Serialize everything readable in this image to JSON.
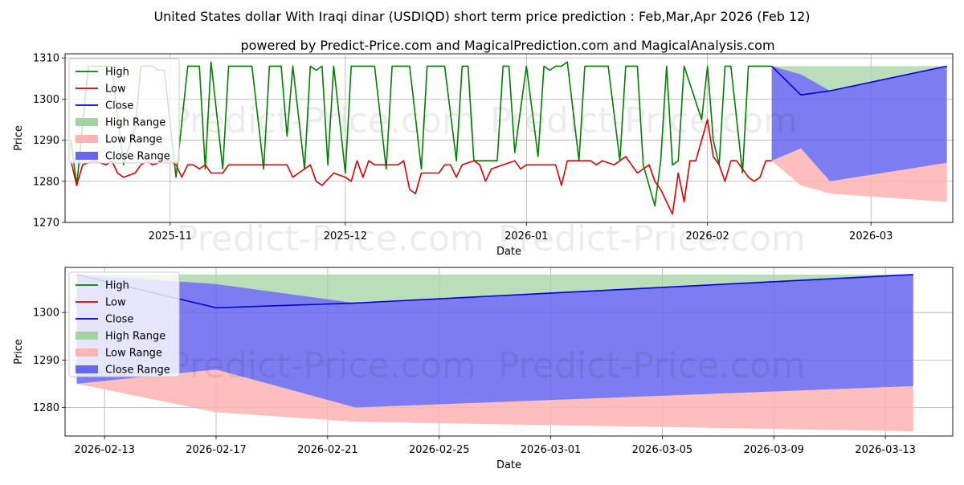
{
  "title": "United States dollar With Iraqi dinar (USDIQD) short term price prediction : Feb,Mar,Apr 2026 (Feb 12)",
  "subtitle": "powered by Predict-Price.com and MagicalPrediction.com and MagicalAnalysis.com",
  "watermark": "Predict-Price.com",
  "colors": {
    "high": "#008000",
    "low": "#dd0000",
    "close": "#0000dd",
    "high_range": "#a3d3a3",
    "low_range": "#ffb3b3",
    "close_range": "#6666ee"
  },
  "chart_data": [
    {
      "type": "line",
      "name": "history",
      "xlabel": "Date",
      "ylabel": "Price",
      "xlim": [
        "2025-10-14",
        "2026-03-15"
      ],
      "ylim": [
        1270,
        1311
      ],
      "yticks": [
        1270,
        1280,
        1290,
        1300,
        1310
      ],
      "xticks": [
        {
          "date": "2025-11-01",
          "label": "2025-11"
        },
        {
          "date": "2025-12-01",
          "label": "2025-12"
        },
        {
          "date": "2026-01-01",
          "label": "2026-01"
        },
        {
          "date": "2026-02-01",
          "label": "2026-02"
        },
        {
          "date": "2026-03-01",
          "label": "2026-03"
        }
      ],
      "legend": {
        "placement": "top-left",
        "entries": [
          "High",
          "Low",
          "Close",
          "High Range",
          "Low Range",
          "Close Range"
        ]
      },
      "series": [
        {
          "name": "High",
          "points": [
            [
              "2025-10-15",
              1290
            ],
            [
              "2025-10-16",
              1279
            ],
            [
              "2025-10-18",
              1308
            ],
            [
              "2025-10-22",
              1308
            ],
            [
              "2025-10-24",
              1284
            ],
            [
              "2025-10-26",
              1293
            ],
            [
              "2025-10-27",
              1308
            ],
            [
              "2025-10-29",
              1308
            ],
            [
              "2025-10-30",
              1307
            ],
            [
              "2025-10-31",
              1307
            ],
            [
              "2025-11-02",
              1281
            ],
            [
              "2025-11-04",
              1308
            ],
            [
              "2025-11-06",
              1308
            ],
            [
              "2025-11-07",
              1283
            ],
            [
              "2025-11-08",
              1309
            ],
            [
              "2025-11-10",
              1283
            ],
            [
              "2025-11-11",
              1308
            ],
            [
              "2025-11-15",
              1308
            ],
            [
              "2025-11-17",
              1283
            ],
            [
              "2025-11-18",
              1308
            ],
            [
              "2025-11-20",
              1308
            ],
            [
              "2025-11-21",
              1291
            ],
            [
              "2025-11-22",
              1308
            ],
            [
              "2025-11-24",
              1283
            ],
            [
              "2025-11-25",
              1308
            ],
            [
              "2025-11-26",
              1307
            ],
            [
              "2025-11-27",
              1308
            ],
            [
              "2025-11-28",
              1284
            ],
            [
              "2025-11-29",
              1308
            ],
            [
              "2025-12-01",
              1282
            ],
            [
              "2025-12-02",
              1308
            ],
            [
              "2025-12-06",
              1308
            ],
            [
              "2025-12-08",
              1283
            ],
            [
              "2025-12-09",
              1308
            ],
            [
              "2025-12-12",
              1308
            ],
            [
              "2025-12-14",
              1283
            ],
            [
              "2025-12-15",
              1308
            ],
            [
              "2025-12-18",
              1308
            ],
            [
              "2025-12-20",
              1285
            ],
            [
              "2025-12-21",
              1308
            ],
            [
              "2025-12-22",
              1308
            ],
            [
              "2025-12-23",
              1285
            ],
            [
              "2025-12-27",
              1285
            ],
            [
              "2025-12-28",
              1308
            ],
            [
              "2025-12-29",
              1308
            ],
            [
              "2025-12-30",
              1287
            ],
            [
              "2026-01-01",
              1308
            ],
            [
              "2026-01-03",
              1286
            ],
            [
              "2026-01-04",
              1308
            ],
            [
              "2026-01-05",
              1307
            ],
            [
              "2026-01-06",
              1308
            ],
            [
              "2026-01-07",
              1308
            ],
            [
              "2026-01-08",
              1309
            ],
            [
              "2026-01-10",
              1285
            ],
            [
              "2026-01-11",
              1308
            ],
            [
              "2026-01-15",
              1308
            ],
            [
              "2026-01-17",
              1285
            ],
            [
              "2026-01-18",
              1308
            ],
            [
              "2026-01-20",
              1308
            ],
            [
              "2026-01-21",
              1284
            ],
            [
              "2026-01-23",
              1274
            ],
            [
              "2026-01-24",
              1285
            ],
            [
              "2026-01-25",
              1308
            ],
            [
              "2026-01-26",
              1284
            ],
            [
              "2026-01-27",
              1285
            ],
            [
              "2026-01-28",
              1308
            ],
            [
              "2026-01-31",
              1295
            ],
            [
              "2026-02-01",
              1308
            ],
            [
              "2026-02-02",
              1290
            ],
            [
              "2026-02-03",
              1284
            ],
            [
              "2026-02-04",
              1308
            ],
            [
              "2026-02-05",
              1308
            ],
            [
              "2026-02-07",
              1282
            ],
            [
              "2026-02-08",
              1308
            ],
            [
              "2026-02-12",
              1308
            ]
          ]
        },
        {
          "name": "Low",
          "points": [
            [
              "2025-10-15",
              1285
            ],
            [
              "2025-10-16",
              1279
            ],
            [
              "2025-10-17",
              1284
            ],
            [
              "2025-10-19",
              1285
            ],
            [
              "2025-10-21",
              1284
            ],
            [
              "2025-10-22",
              1285
            ],
            [
              "2025-10-23",
              1282
            ],
            [
              "2025-10-24",
              1281
            ],
            [
              "2025-10-26",
              1282
            ],
            [
              "2025-10-27",
              1284
            ],
            [
              "2025-10-28",
              1285
            ],
            [
              "2025-10-29",
              1284
            ],
            [
              "2025-10-31",
              1285
            ],
            [
              "2025-11-01",
              1285
            ],
            [
              "2025-11-02",
              1284
            ],
            [
              "2025-11-03",
              1281
            ],
            [
              "2025-11-04",
              1284
            ],
            [
              "2025-11-05",
              1284
            ],
            [
              "2025-11-06",
              1283
            ],
            [
              "2025-11-07",
              1284
            ],
            [
              "2025-11-08",
              1282
            ],
            [
              "2025-11-10",
              1282
            ],
            [
              "2025-11-11",
              1284
            ],
            [
              "2025-11-13",
              1284
            ],
            [
              "2025-11-17",
              1284
            ],
            [
              "2025-11-18",
              1284
            ],
            [
              "2025-11-19",
              1284
            ],
            [
              "2025-11-20",
              1284
            ],
            [
              "2025-11-21",
              1284
            ],
            [
              "2025-11-22",
              1281
            ],
            [
              "2025-11-24",
              1283
            ],
            [
              "2025-11-25",
              1284
            ],
            [
              "2025-11-26",
              1280
            ],
            [
              "2025-11-27",
              1279
            ],
            [
              "2025-11-29",
              1282
            ],
            [
              "2025-12-01",
              1281
            ],
            [
              "2025-12-02",
              1280
            ],
            [
              "2025-12-03",
              1285
            ],
            [
              "2025-12-04",
              1281
            ],
            [
              "2025-12-05",
              1285
            ],
            [
              "2025-12-06",
              1284
            ],
            [
              "2025-12-08",
              1284
            ],
            [
              "2025-12-09",
              1284
            ],
            [
              "2025-12-10",
              1284
            ],
            [
              "2025-12-11",
              1285
            ],
            [
              "2025-12-12",
              1278
            ],
            [
              "2025-12-13",
              1277
            ],
            [
              "2025-12-14",
              1282
            ],
            [
              "2025-12-16",
              1282
            ],
            [
              "2025-12-17",
              1282
            ],
            [
              "2025-12-18",
              1284
            ],
            [
              "2025-12-19",
              1284
            ],
            [
              "2025-12-20",
              1281
            ],
            [
              "2025-12-21",
              1284
            ],
            [
              "2025-12-23",
              1285
            ],
            [
              "2025-12-24",
              1284
            ],
            [
              "2025-12-25",
              1280
            ],
            [
              "2025-12-26",
              1283
            ],
            [
              "2025-12-28",
              1284
            ],
            [
              "2025-12-30",
              1285
            ],
            [
              "2025-12-31",
              1283
            ],
            [
              "2026-01-01",
              1284
            ],
            [
              "2026-01-03",
              1284
            ],
            [
              "2026-01-05",
              1284
            ],
            [
              "2026-01-06",
              1284
            ],
            [
              "2026-01-07",
              1279
            ],
            [
              "2026-01-08",
              1285
            ],
            [
              "2026-01-10",
              1285
            ],
            [
              "2026-01-11",
              1285
            ],
            [
              "2026-01-12",
              1285
            ],
            [
              "2026-01-13",
              1284
            ],
            [
              "2026-01-14",
              1285
            ],
            [
              "2026-01-16",
              1284
            ],
            [
              "2026-01-18",
              1286
            ],
            [
              "2026-01-19",
              1284
            ],
            [
              "2026-01-20",
              1282
            ],
            [
              "2026-01-21",
              1283
            ],
            [
              "2026-01-22",
              1284
            ],
            [
              "2026-01-23",
              1280
            ],
            [
              "2026-01-24",
              1278
            ],
            [
              "2026-01-26",
              1272
            ],
            [
              "2026-01-27",
              1282
            ],
            [
              "2026-01-28",
              1275
            ],
            [
              "2026-01-29",
              1285
            ],
            [
              "2026-01-30",
              1285
            ],
            [
              "2026-02-01",
              1295
            ],
            [
              "2026-02-02",
              1286
            ],
            [
              "2026-02-03",
              1284
            ],
            [
              "2026-02-04",
              1280
            ],
            [
              "2026-02-05",
              1285
            ],
            [
              "2026-02-06",
              1285
            ],
            [
              "2026-02-07",
              1283
            ],
            [
              "2026-02-08",
              1281
            ],
            [
              "2026-02-09",
              1280
            ],
            [
              "2026-02-10",
              1281
            ],
            [
              "2026-02-11",
              1285
            ],
            [
              "2026-02-12",
              1285
            ]
          ]
        },
        {
          "name": "Close",
          "points": [
            [
              "2026-02-12",
              1308
            ],
            [
              "2026-02-17",
              1301
            ],
            [
              "2026-02-22",
              1302
            ],
            [
              "2026-03-14",
              1308
            ]
          ]
        }
      ],
      "ranges": [
        {
          "name": "High Range",
          "dates": [
            "2026-02-12",
            "2026-02-17",
            "2026-02-22",
            "2026-03-14"
          ],
          "upper": [
            1308,
            1308,
            1308,
            1308
          ],
          "lower": [
            1308,
            1306,
            1302,
            1308
          ]
        },
        {
          "name": "Low Range",
          "dates": [
            "2026-02-12",
            "2026-02-17",
            "2026-02-22",
            "2026-03-14"
          ],
          "upper": [
            1285,
            1288,
            1280,
            1284.5
          ],
          "lower": [
            1285,
            1279,
            1277,
            1275
          ]
        },
        {
          "name": "Close Range",
          "dates": [
            "2026-02-12",
            "2026-02-17",
            "2026-02-22",
            "2026-03-14"
          ],
          "upper": [
            1308,
            1306,
            1302,
            1308
          ],
          "lower": [
            1285,
            1288,
            1280,
            1284.5
          ]
        }
      ]
    },
    {
      "type": "line",
      "name": "forecast",
      "xlabel": "Date",
      "ylabel": "Price",
      "xlim": [
        "2026-02-11T14:00",
        "2026-03-15T10:00"
      ],
      "ylim": [
        1274,
        1309.5
      ],
      "yticks": [
        1280,
        1290,
        1300
      ],
      "xticks": [
        {
          "date": "2026-02-13",
          "label": "2026-02-13"
        },
        {
          "date": "2026-02-17",
          "label": "2026-02-17"
        },
        {
          "date": "2026-02-21",
          "label": "2026-02-21"
        },
        {
          "date": "2026-02-25",
          "label": "2026-02-25"
        },
        {
          "date": "2026-03-01",
          "label": "2026-03-01"
        },
        {
          "date": "2026-03-05",
          "label": "2026-03-05"
        },
        {
          "date": "2026-03-09",
          "label": "2026-03-09"
        },
        {
          "date": "2026-03-13",
          "label": "2026-03-13"
        }
      ],
      "legend": {
        "placement": "top-left",
        "entries": [
          "High",
          "Low",
          "Close",
          "High Range",
          "Low Range",
          "Close Range"
        ]
      },
      "series": [
        {
          "name": "Close",
          "points": [
            [
              "2026-02-12",
              1308
            ],
            [
              "2026-02-17",
              1301
            ],
            [
              "2026-02-22",
              1302
            ],
            [
              "2026-03-14",
              1308
            ]
          ]
        }
      ],
      "ranges": [
        {
          "name": "High Range",
          "dates": [
            "2026-02-12",
            "2026-02-17",
            "2026-02-22",
            "2026-03-14"
          ],
          "upper": [
            1308,
            1308,
            1308,
            1308
          ],
          "lower": [
            1308,
            1306,
            1302,
            1308
          ]
        },
        {
          "name": "Low Range",
          "dates": [
            "2026-02-12",
            "2026-02-17",
            "2026-02-22",
            "2026-03-14"
          ],
          "upper": [
            1285,
            1288,
            1280,
            1284.5
          ],
          "lower": [
            1285,
            1279,
            1277,
            1275
          ]
        },
        {
          "name": "Close Range",
          "dates": [
            "2026-02-12",
            "2026-02-17",
            "2026-02-22",
            "2026-03-14"
          ],
          "upper": [
            1308,
            1306,
            1302,
            1308
          ],
          "lower": [
            1285,
            1288,
            1280,
            1284.5
          ]
        }
      ]
    }
  ]
}
